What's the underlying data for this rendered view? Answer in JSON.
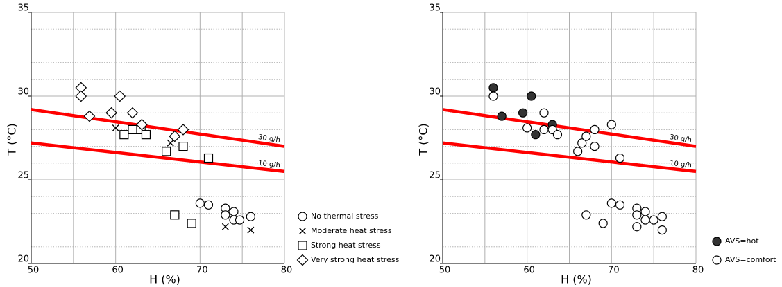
{
  "chart_data": [
    {
      "type": "scatter",
      "x_label": "H (%)",
      "y_label": "T (°C)",
      "xlim": [
        50,
        80
      ],
      "xticks": [
        50,
        60,
        70,
        80
      ],
      "xminor": [
        55,
        65,
        75
      ],
      "ylim": [
        20,
        35
      ],
      "yticks": [
        20,
        25,
        30,
        35
      ],
      "yminor": [
        21,
        22,
        23,
        24,
        26,
        27,
        28,
        29,
        31,
        32,
        33,
        34
      ],
      "lines": [
        {
          "name": "30 g/h",
          "color": "#ff0000",
          "x": [
            50,
            80
          ],
          "values": [
            29.2,
            27.0
          ]
        },
        {
          "name": "10 g/h",
          "color": "#ff0000",
          "x": [
            50,
            80
          ],
          "values": [
            27.2,
            25.5
          ]
        }
      ],
      "series": [
        {
          "name": "No thermal stress",
          "marker": "circle",
          "color": "#000000",
          "x": [
            70.0,
            71.0,
            73.0,
            73.0,
            74.0,
            74.0,
            74.7,
            76.0
          ],
          "values": [
            23.6,
            23.5,
            23.3,
            22.9,
            23.1,
            22.6,
            22.6,
            22.8
          ]
        },
        {
          "name": "Moderate heat stress",
          "marker": "x",
          "color": "#000000",
          "x": [
            60.0,
            66.5,
            73.0,
            76.0
          ],
          "values": [
            28.1,
            27.2,
            22.2,
            22.0
          ]
        },
        {
          "name": "Strong heat stress",
          "marker": "square",
          "color": "#000000",
          "x": [
            61.0,
            62.0,
            63.0,
            63.6,
            66.0,
            68.0,
            71.0,
            67.0,
            69.0
          ],
          "values": [
            27.7,
            28.0,
            28.0,
            27.7,
            26.7,
            27.0,
            26.3,
            22.9,
            22.4
          ]
        },
        {
          "name": "Very strong heat stress",
          "marker": "diamond",
          "color": "#000000",
          "x": [
            55.9,
            55.9,
            56.9,
            59.5,
            60.5,
            62.0,
            63.1,
            67.0,
            68.0
          ],
          "values": [
            30.5,
            30.0,
            28.8,
            29.0,
            30.0,
            29.0,
            28.3,
            27.6,
            28.0
          ]
        }
      ]
    },
    {
      "type": "scatter",
      "x_label": "H (%)",
      "y_label": "T (°C)",
      "xlim": [
        50,
        80
      ],
      "xticks": [
        50,
        60,
        70,
        80
      ],
      "xminor": [
        55,
        65,
        75
      ],
      "ylim": [
        20,
        35
      ],
      "yticks": [
        20,
        25,
        30,
        35
      ],
      "yminor": [
        21,
        22,
        23,
        24,
        26,
        27,
        28,
        29,
        31,
        32,
        33,
        34
      ],
      "lines": [
        {
          "name": "30 g/h",
          "color": "#ff0000",
          "x": [
            50,
            80
          ],
          "values": [
            29.2,
            27.0
          ]
        },
        {
          "name": "10 g/h",
          "color": "#ff0000",
          "x": [
            50,
            80
          ],
          "values": [
            27.2,
            25.5
          ]
        }
      ],
      "series": [
        {
          "name": "AVS=hot",
          "marker": "filled-circle",
          "color": "#333333",
          "x": [
            56.0,
            57.0,
            59.5,
            60.5,
            61.0,
            63.0
          ],
          "values": [
            30.5,
            28.8,
            29.0,
            30.0,
            27.7,
            28.3
          ]
        },
        {
          "name": "AVS=comfort",
          "marker": "circle",
          "color": "#000000",
          "x": [
            56.0,
            60.0,
            62.0,
            62.0,
            63.0,
            63.6,
            66.0,
            66.5,
            67.0,
            68.0,
            68.0,
            70.0,
            71.0,
            67.0,
            69.0,
            70.0,
            71.0,
            73.0,
            73.0,
            73.0,
            74.0,
            74.0,
            75.0,
            76.0,
            76.0
          ],
          "values": [
            30.0,
            28.1,
            29.0,
            28.0,
            28.0,
            27.7,
            26.7,
            27.2,
            27.6,
            28.0,
            27.0,
            28.3,
            26.3,
            22.9,
            22.4,
            23.6,
            23.5,
            23.3,
            22.9,
            22.2,
            23.1,
            22.6,
            22.6,
            22.8,
            22.0
          ]
        }
      ]
    }
  ]
}
